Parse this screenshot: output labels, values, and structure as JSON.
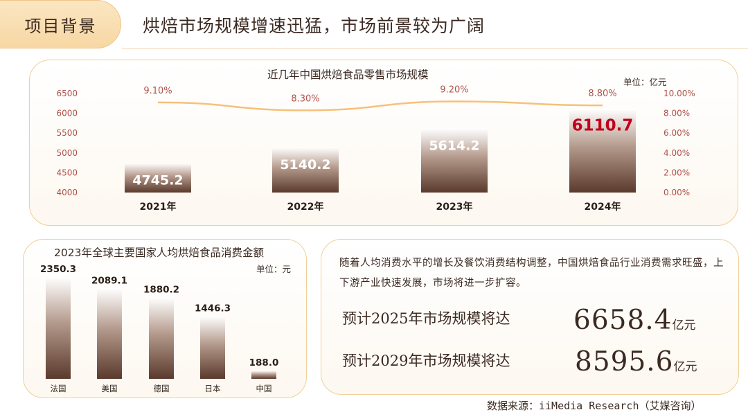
{
  "header": {
    "tag": "项目背景",
    "headline": "烘焙市场规模增速迅猛，市场前景较为广阔"
  },
  "colors": {
    "accent": "#f7d7a3",
    "border": "#f0cf97",
    "bar_top": "#ffffff",
    "bar_bottom": "#5a3a2c",
    "growth_line": "#f7c07a",
    "highlight": "#c0001a"
  },
  "chart_data": [
    {
      "type": "bar",
      "title": "近几年中国烘焙食品零售市场规模",
      "unit": "单位：亿元",
      "categories": [
        "2021年",
        "2022年",
        "2023年",
        "2024年"
      ],
      "values": [
        4745.2,
        5140.2,
        5614.2,
        6110.7
      ],
      "value_labels": [
        "4745.2",
        "5140.2",
        "5614.2",
        "6110.7"
      ],
      "highlight_index": 3,
      "ylim": [
        4000,
        6500
      ],
      "yticks": [
        "4000",
        "4500",
        "5000",
        "5500",
        "6000",
        "6500"
      ],
      "secondary": {
        "type": "line",
        "values": [
          9.1,
          8.3,
          9.2,
          8.8
        ],
        "value_labels": [
          "9.10%",
          "8.30%",
          "9.20%",
          "8.80%"
        ],
        "ylim": [
          0,
          10
        ],
        "yticks": [
          "0.00%",
          "2.00%",
          "4.00%",
          "6.00%",
          "8.00%",
          "10.00%"
        ]
      },
      "grid": false
    },
    {
      "type": "bar",
      "title": "2023年全球主要国家人均烘焙食品消费金额",
      "unit": "单位：元",
      "categories": [
        "法国",
        "美国",
        "德国",
        "日本",
        "中国"
      ],
      "values": [
        2350.3,
        2089.1,
        1880.2,
        1446.3,
        188.0
      ],
      "value_labels": [
        "2350.3",
        "2089.1",
        "1880.2",
        "1446.3",
        "188.0"
      ],
      "ylim": [
        0,
        2350.3
      ],
      "grid": false
    }
  ],
  "summary": "随着人均消费水平的增长及餐饮消费结构调整，中国烘焙食品行业消费需求旺盛，上下游产业快速发展，市场将进一步扩容。",
  "forecasts": [
    {
      "label": "预计2025年市场规模将达",
      "value": "6658.4",
      "unit": "亿元"
    },
    {
      "label": "预计2029年市场规模将达",
      "value": "8595.6",
      "unit": "亿元"
    }
  ],
  "source": "数据来源：iiMedia Research（艾媒咨询）"
}
